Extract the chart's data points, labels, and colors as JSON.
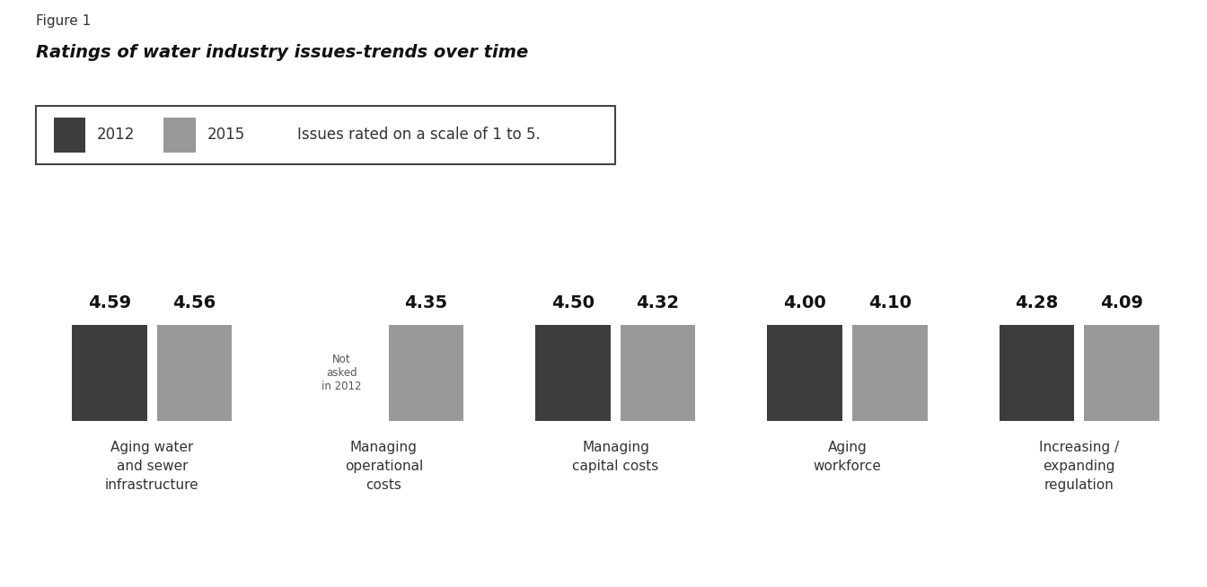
{
  "figure_label": "Figure 1",
  "title": "Ratings of water industry issues-trends over time",
  "legend_note": "Issues rated on a scale of 1 to 5.",
  "color_2012": "#3d3d3d",
  "color_2015": "#999999",
  "categories": [
    "Aging water\nand sewer\ninfrastructure",
    "Managing\noperational\ncosts",
    "Managing\ncapital costs",
    "Aging\nworkforce",
    "Increasing /\nexpanding\nregulation"
  ],
  "values_2012": [
    4.59,
    null,
    4.5,
    4.0,
    4.28
  ],
  "values_2015": [
    4.56,
    4.35,
    4.32,
    4.1,
    4.09
  ],
  "not_asked_label": "Not\nasked\nin 2012",
  "legend_year1": "2012",
  "legend_year2": "2015"
}
